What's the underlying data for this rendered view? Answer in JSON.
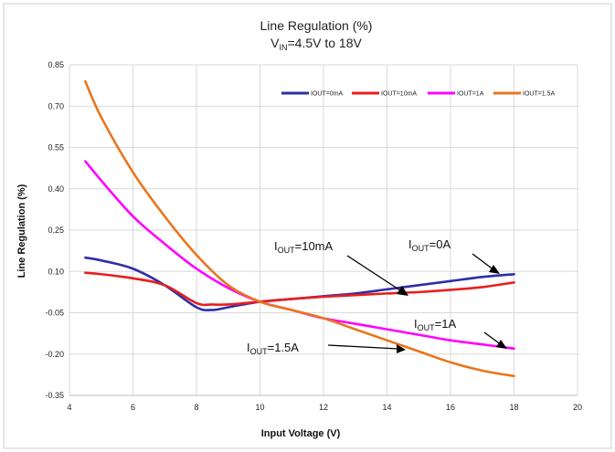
{
  "chart_data": {
    "type": "line",
    "title": "Line Regulation (%)",
    "subtitle": {
      "main": "V",
      "sub": "IN",
      "rest": "=4.5V to 18V"
    },
    "xlabel": "Input Voltage (V)",
    "ylabel": "Line Regulation (%)",
    "xlim": [
      4,
      20
    ],
    "ylim": [
      -0.35,
      0.85
    ],
    "xticks": [
      "4",
      "6",
      "8",
      "10",
      "12",
      "14",
      "16",
      "18",
      "20"
    ],
    "yticks": [
      "0.85",
      "0.70",
      "0.55",
      "0.40",
      "0.25",
      "0.10",
      "-0.05",
      "-0.20",
      "-0.35"
    ],
    "grid": true,
    "legend_position": "top-right",
    "series": [
      {
        "name": "IOUT=0mA",
        "color": "#2e2ea8",
        "x": [
          4.5,
          5,
          6,
          7,
          8,
          8.5,
          9,
          10,
          11,
          12,
          13,
          14,
          15,
          16,
          17,
          18
        ],
        "y": [
          0.15,
          0.14,
          0.11,
          0.05,
          -0.03,
          -0.04,
          -0.03,
          -0.01,
          0.0,
          0.01,
          0.02,
          0.035,
          0.05,
          0.065,
          0.08,
          0.09
        ]
      },
      {
        "name": "IOUT=10mA",
        "color": "#e81e1e",
        "x": [
          4.5,
          5,
          6,
          7,
          8,
          8.5,
          9,
          10,
          11,
          12,
          13,
          14,
          15,
          16,
          17,
          18
        ],
        "y": [
          0.095,
          0.09,
          0.075,
          0.05,
          -0.015,
          -0.02,
          -0.02,
          -0.01,
          0.0,
          0.008,
          0.014,
          0.02,
          0.025,
          0.033,
          0.043,
          0.06
        ]
      },
      {
        "name": "IOUT=1A",
        "color": "#ff00ff",
        "x": [
          4.5,
          5,
          6,
          7,
          8,
          9,
          10,
          11,
          12,
          13,
          14,
          15,
          16,
          17,
          18
        ],
        "y": [
          0.5,
          0.43,
          0.3,
          0.2,
          0.11,
          0.04,
          -0.01,
          -0.04,
          -0.07,
          -0.09,
          -0.11,
          -0.13,
          -0.15,
          -0.165,
          -0.18
        ]
      },
      {
        "name": "IOUT=1.5A",
        "color": "#e8761e",
        "x": [
          4.5,
          5,
          6,
          7,
          8,
          9,
          10,
          11,
          12,
          13,
          14,
          15,
          16,
          17,
          18
        ],
        "y": [
          0.79,
          0.66,
          0.46,
          0.3,
          0.16,
          0.05,
          -0.01,
          -0.04,
          -0.07,
          -0.11,
          -0.15,
          -0.19,
          -0.23,
          -0.26,
          -0.28
        ]
      }
    ],
    "annotations": [
      {
        "main": "I",
        "sub": "OUT",
        "rest": "=10mA"
      },
      {
        "main": "I",
        "sub": "OUT",
        "rest": "=0A"
      },
      {
        "main": "I",
        "sub": "OUT",
        "rest": "=1A"
      },
      {
        "main": "I",
        "sub": "OUT",
        "rest": "=1.5A"
      }
    ]
  }
}
